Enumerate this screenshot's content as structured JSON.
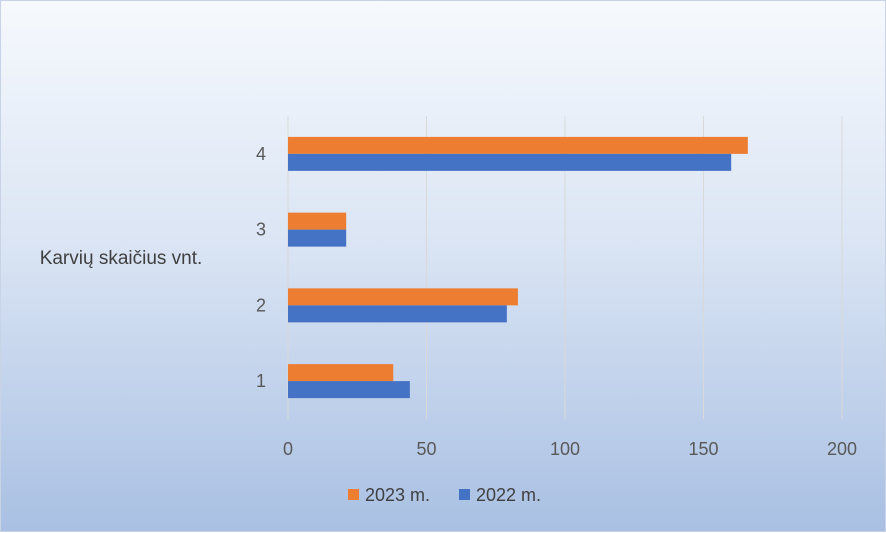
{
  "chart_data": {
    "type": "bar",
    "orientation": "horizontal",
    "title": "",
    "xlabel": "",
    "ylabel": "Karvių skaičius vnt.",
    "categories": [
      "1",
      "2",
      "3",
      "4"
    ],
    "series": [
      {
        "name": "2023 m.",
        "color": "#ED7D31",
        "values": [
          38,
          83,
          21,
          166
        ]
      },
      {
        "name": "2022 m.",
        "color": "#4472C4",
        "values": [
          44,
          79,
          21,
          160
        ]
      }
    ],
    "xlim": [
      0,
      200
    ],
    "xticks": [
      "0",
      "50",
      "100",
      "150",
      "200"
    ],
    "grid": true,
    "legend_position": "bottom"
  }
}
